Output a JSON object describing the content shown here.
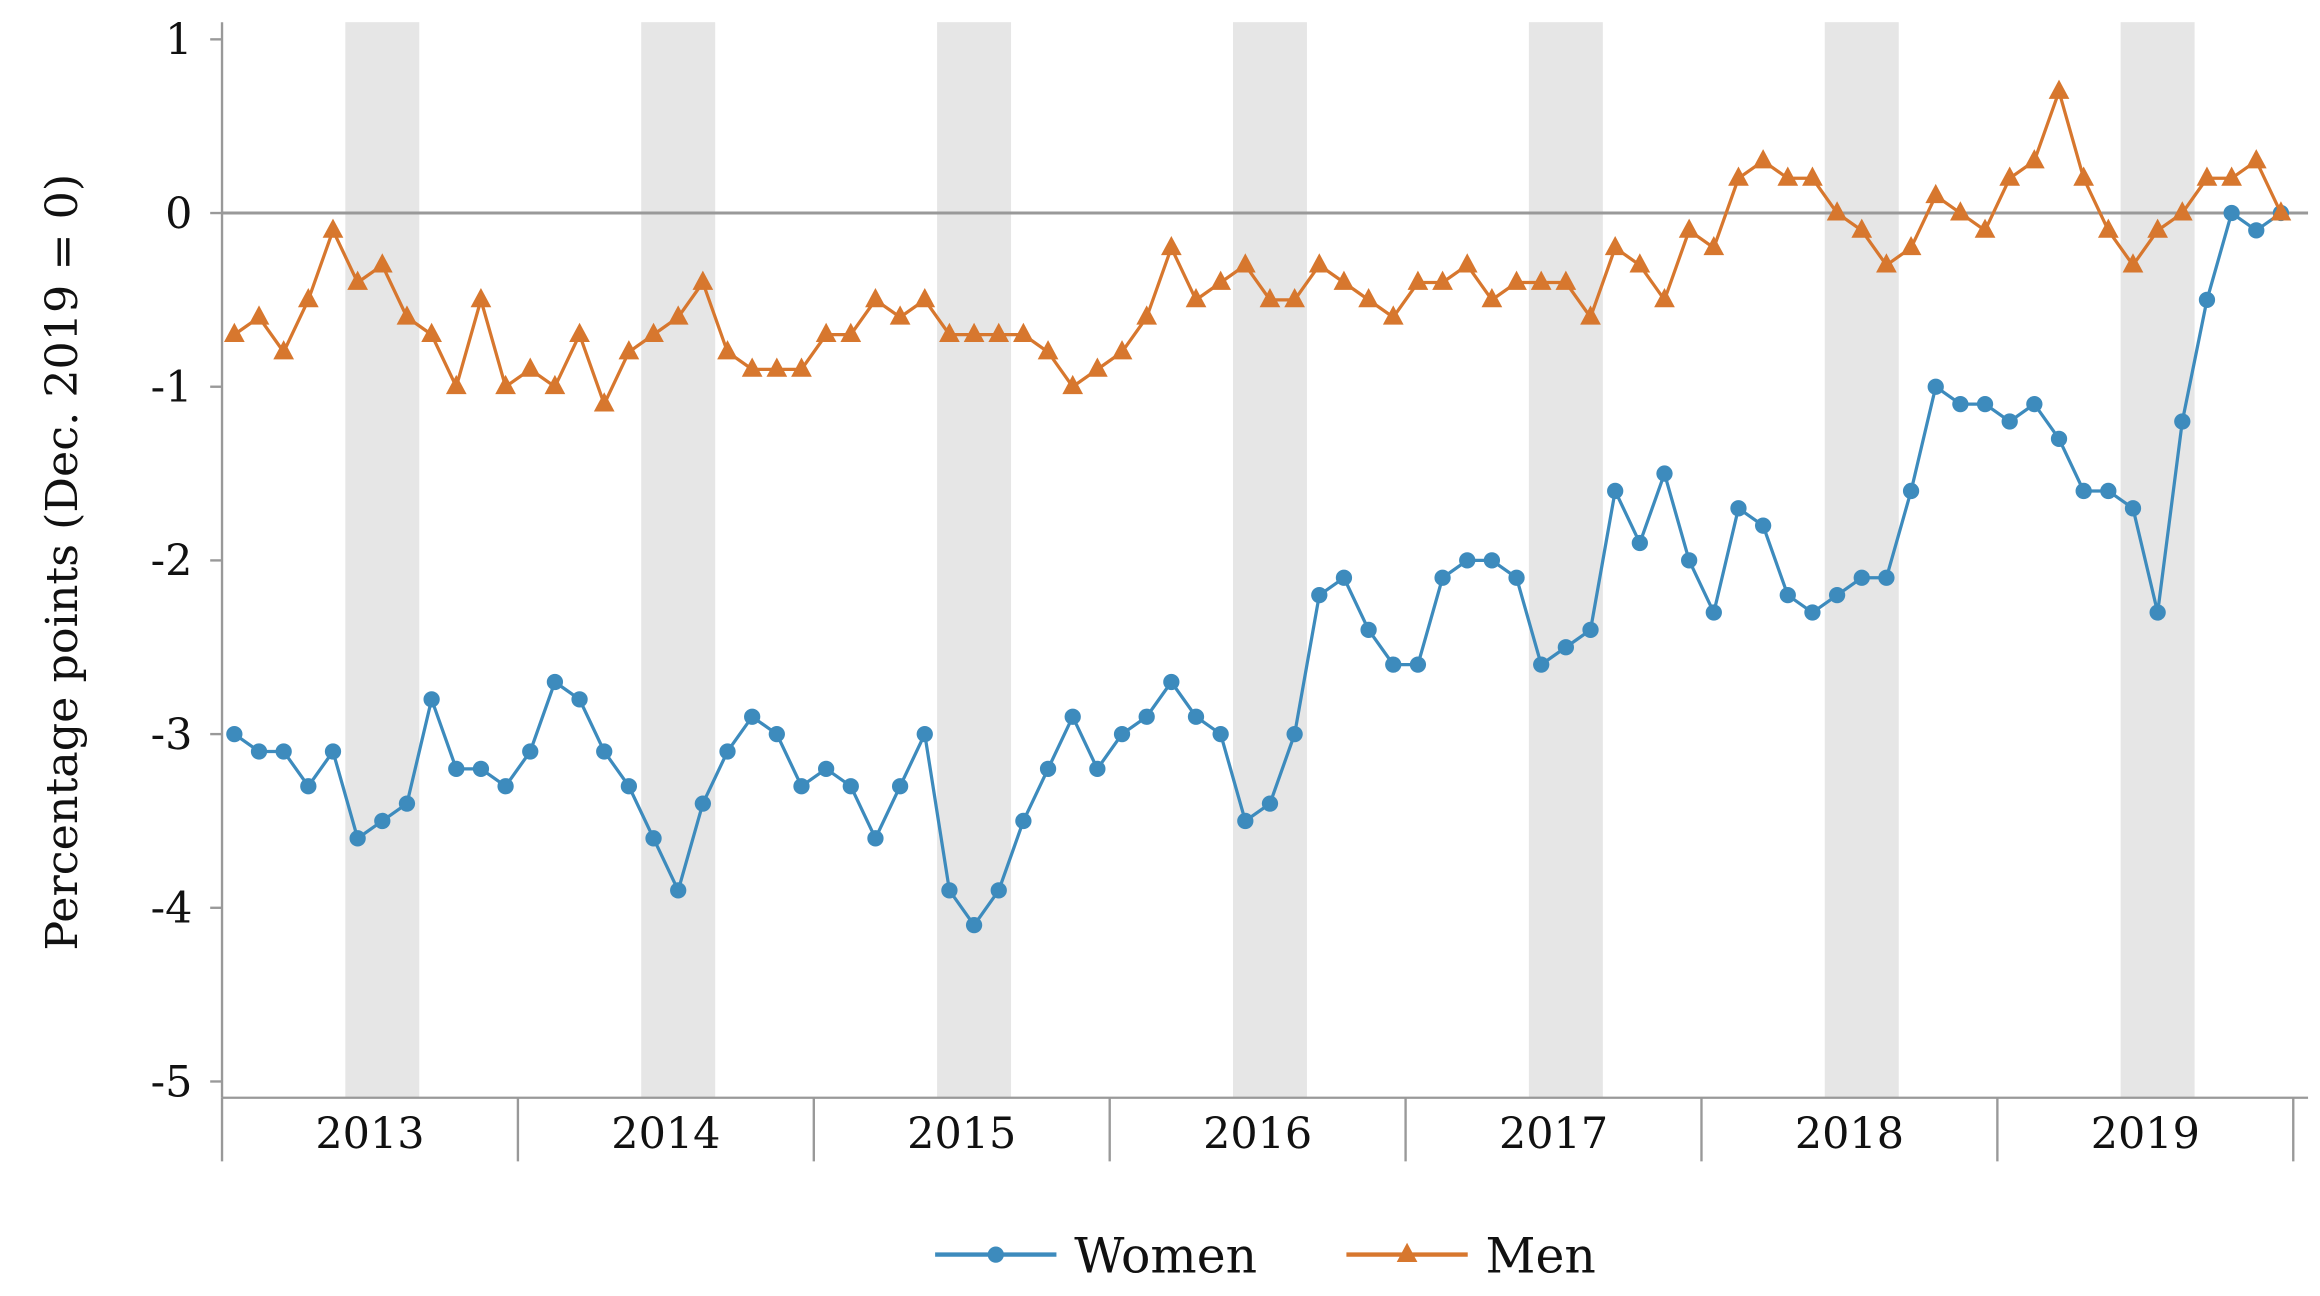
{
  "chart_data": {
    "type": "line",
    "title": "",
    "xlabel": "",
    "ylabel": "Percentage points (Dec. 2019 = 0)",
    "ylim": [
      -5,
      1
    ],
    "yticks": [
      1,
      0,
      -1,
      -2,
      -3,
      -4,
      -5
    ],
    "ytick_labels": [
      "1",
      "0",
      "-1",
      "-2",
      "-3",
      "-4",
      "-5"
    ],
    "x_frequency": "monthly",
    "x_range": [
      "2013-01",
      "2019-12"
    ],
    "xtick_labels": [
      "2013",
      "2014",
      "2015",
      "2016",
      "2017",
      "2018",
      "2019"
    ],
    "shaded_months": [
      "Jun",
      "Jul",
      "Aug"
    ],
    "reference_line_y": 0,
    "grid": false,
    "legend_position": "bottom",
    "series": [
      {
        "name": "Women",
        "color": "#3d8bbd",
        "marker": "circle",
        "values": [
          -3.0,
          -3.1,
          -3.1,
          -3.3,
          -3.1,
          -3.6,
          -3.5,
          -3.4,
          -2.8,
          -3.2,
          -3.2,
          -3.3,
          -3.1,
          -2.7,
          -2.8,
          -3.1,
          -3.3,
          -3.6,
          -3.9,
          -3.4,
          -3.1,
          -2.9,
          -3.0,
          -3.3,
          -3.2,
          -3.3,
          -3.6,
          -3.3,
          -3.0,
          -3.9,
          -4.1,
          -3.9,
          -3.5,
          -3.2,
          -2.9,
          -3.2,
          -3.0,
          -2.9,
          -2.7,
          -2.9,
          -3.0,
          -3.5,
          -3.4,
          -3.0,
          -2.2,
          -2.1,
          -2.4,
          -2.6,
          -2.6,
          -2.1,
          -2.0,
          -2.0,
          -2.1,
          -2.6,
          -2.5,
          -2.4,
          -1.6,
          -1.9,
          -1.5,
          -2.0,
          -2.3,
          -1.7,
          -1.8,
          -2.2,
          -2.3,
          -2.2,
          -2.1,
          -2.1,
          -1.6,
          -1.0,
          -1.1,
          -1.1,
          -1.2,
          -1.1,
          -1.3,
          -1.6,
          -1.6,
          -1.7,
          -2.3,
          -1.2,
          -0.5,
          0.0,
          -0.1,
          0.0
        ]
      },
      {
        "name": "Men",
        "color": "#d7772e",
        "marker": "triangle",
        "values": [
          -0.7,
          -0.6,
          -0.8,
          -0.5,
          -0.1,
          -0.4,
          -0.3,
          -0.6,
          -0.7,
          -1.0,
          -0.5,
          -1.0,
          -0.9,
          -1.0,
          -0.7,
          -1.1,
          -0.8,
          -0.7,
          -0.6,
          -0.4,
          -0.8,
          -0.9,
          -0.9,
          -0.9,
          -0.7,
          -0.7,
          -0.5,
          -0.6,
          -0.5,
          -0.7,
          -0.7,
          -0.7,
          -0.7,
          -0.8,
          -1.0,
          -0.9,
          -0.8,
          -0.6,
          -0.2,
          -0.5,
          -0.4,
          -0.3,
          -0.5,
          -0.5,
          -0.3,
          -0.4,
          -0.5,
          -0.6,
          -0.4,
          -0.4,
          -0.3,
          -0.5,
          -0.4,
          -0.4,
          -0.4,
          -0.6,
          -0.2,
          -0.3,
          -0.5,
          -0.1,
          -0.2,
          0.2,
          0.3,
          0.2,
          0.2,
          0.0,
          -0.1,
          -0.3,
          -0.2,
          0.1,
          0.0,
          -0.1,
          0.2,
          0.3,
          0.7,
          0.2,
          -0.1,
          -0.3,
          -0.1,
          0.0,
          0.2,
          0.2,
          0.3,
          0.0
        ]
      }
    ]
  }
}
